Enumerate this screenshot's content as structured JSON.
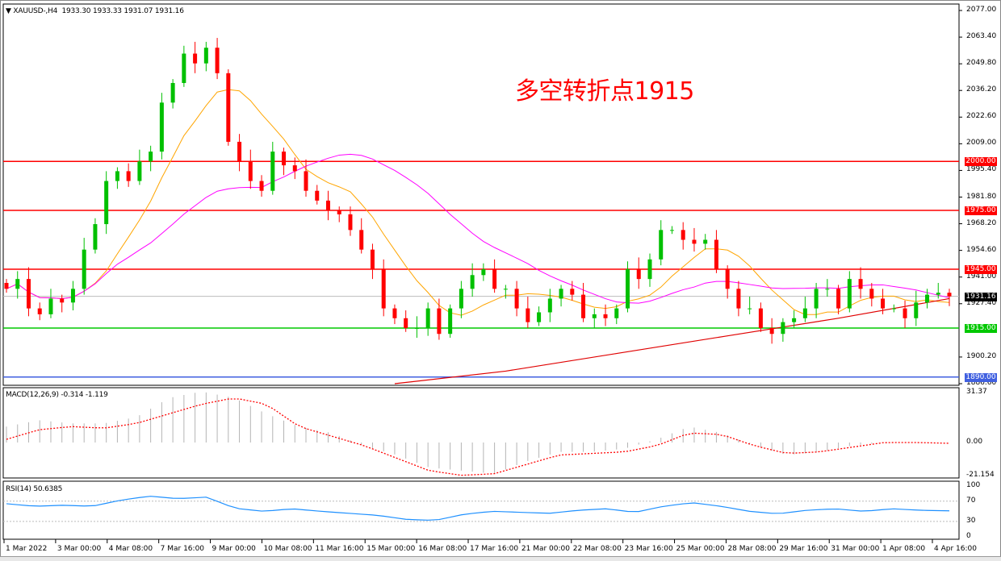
{
  "header": {
    "symbol": "XAUUSD-,H4",
    "ohlc": "1933.30 1933.33 1931.07 1931.16"
  },
  "annotation": "多空转折点1915",
  "chart_data": [
    {
      "type": "candlestick",
      "panel": "main",
      "ylim": [
        1886.6,
        2077.0
      ],
      "y_ticks": [
        "2077.00",
        "2063.40",
        "2049.80",
        "2036.20",
        "2022.60",
        "2009.00",
        "1995.40",
        "1981.80",
        "1968.20",
        "1954.60",
        "1941.00",
        "1927.40",
        "1900.20",
        "1886.60"
      ],
      "closes": [
        1935,
        1940,
        1925,
        1922,
        1930,
        1928,
        1935,
        1955,
        1968,
        1990,
        1995,
        1990,
        2000,
        2005,
        2030,
        2040,
        2055,
        2050,
        2058,
        2045,
        2010,
        2000,
        1990,
        1985,
        2005,
        1998,
        1995,
        1985,
        1980,
        1975,
        1973,
        1965,
        1955,
        1945,
        1925,
        1920,
        1915,
        1915,
        1925,
        1912,
        1925,
        1935,
        1942,
        1945,
        1935,
        1935,
        1925,
        1918,
        1923,
        1930,
        1935,
        1932,
        1920,
        1922,
        1920,
        1925,
        1945,
        1940,
        1950,
        1965,
        1965,
        1960,
        1958,
        1960,
        1945,
        1935,
        1925,
        1925,
        1915,
        1912,
        1918,
        1920,
        1925,
        1935,
        1935,
        1925,
        1940,
        1935,
        1930,
        1925,
        1925,
        1920,
        1928,
        1932,
        1933,
        1931.16
      ],
      "horizontal_lines": [
        {
          "price": "2000.00",
          "value": 2000,
          "color": "#ff0000"
        },
        {
          "price": "1975.00",
          "value": 1975,
          "color": "#ff0000"
        },
        {
          "price": "1945.00",
          "value": 1945,
          "color": "#ff0000"
        },
        {
          "price": "1915.00",
          "value": 1915,
          "color": "#00c800"
        },
        {
          "price": "1890.00",
          "value": 1890,
          "color": "#4060e0"
        }
      ],
      "current_price": "1931.16",
      "ma_fast": {
        "color": "#ffa500",
        "period": 8
      },
      "ma_mid": {
        "color": "#ff00ff",
        "period": 24
      },
      "ma_slow": {
        "color": "#e00000",
        "points": [
          [
            35,
            1886.6
          ],
          [
            45,
            1893
          ],
          [
            55,
            1902
          ],
          [
            65,
            1911
          ],
          [
            75,
            1920
          ],
          [
            85,
            1930
          ]
        ]
      },
      "up_color": "#00c000",
      "down_color": "#ff0000"
    },
    {
      "type": "macd",
      "panel": "macd",
      "label": "MACD(12,26,9) -0.314 -1.119",
      "y_ticks": [
        "31.37",
        "0.00",
        "-21.154"
      ],
      "ylim": [
        -21.154,
        31.37
      ],
      "histogram": [
        10,
        14,
        12,
        12,
        16,
        28,
        32,
        28,
        18,
        10,
        6,
        -2,
        -8,
        -16,
        -18,
        -20,
        -12,
        -6,
        -6,
        -4,
        2,
        10,
        6,
        -2,
        -8,
        -6,
        -2,
        0,
        0,
        0
      ],
      "signal": [
        2,
        8,
        10,
        9,
        12,
        18,
        24,
        28,
        24,
        10,
        4,
        -2,
        -10,
        -18,
        -21,
        -20,
        -14,
        -8,
        -7,
        -6,
        -2,
        6,
        5,
        -2,
        -7,
        -6,
        -3,
        0,
        0,
        -0.5
      ],
      "hist_color": "#b4b4b4",
      "signal_color": "#ff0000"
    },
    {
      "type": "line",
      "panel": "rsi",
      "label": "RSI(14) 50.6385",
      "y_ticks": [
        "100",
        "70",
        "30",
        "0"
      ],
      "ylim": [
        0,
        100
      ],
      "values": [
        65,
        60,
        62,
        60,
        72,
        80,
        75,
        78,
        56,
        50,
        55,
        50,
        46,
        42,
        34,
        32,
        44,
        50,
        48,
        46,
        52,
        55,
        48,
        60,
        67,
        60,
        50,
        45,
        52,
        55,
        50,
        55,
        52,
        51
      ],
      "color": "#1e90ff",
      "levels": [
        70,
        30
      ]
    }
  ],
  "x_ticks": [
    "1 Mar 2022",
    "3 Mar 00:00",
    "4 Mar 08:00",
    "7 Mar 16:00",
    "9 Mar 00:00",
    "10 Mar 08:00",
    "11 Mar 16:00",
    "15 Mar 00:00",
    "16 Mar 08:00",
    "17 Mar 16:00",
    "21 Mar 00:00",
    "22 Mar 08:00",
    "23 Mar 16:00",
    "25 Mar 00:00",
    "28 Mar 08:00",
    "29 Mar 16:00",
    "31 Mar 00:00",
    "1 Apr 08:00",
    "4 Apr 16:00"
  ]
}
